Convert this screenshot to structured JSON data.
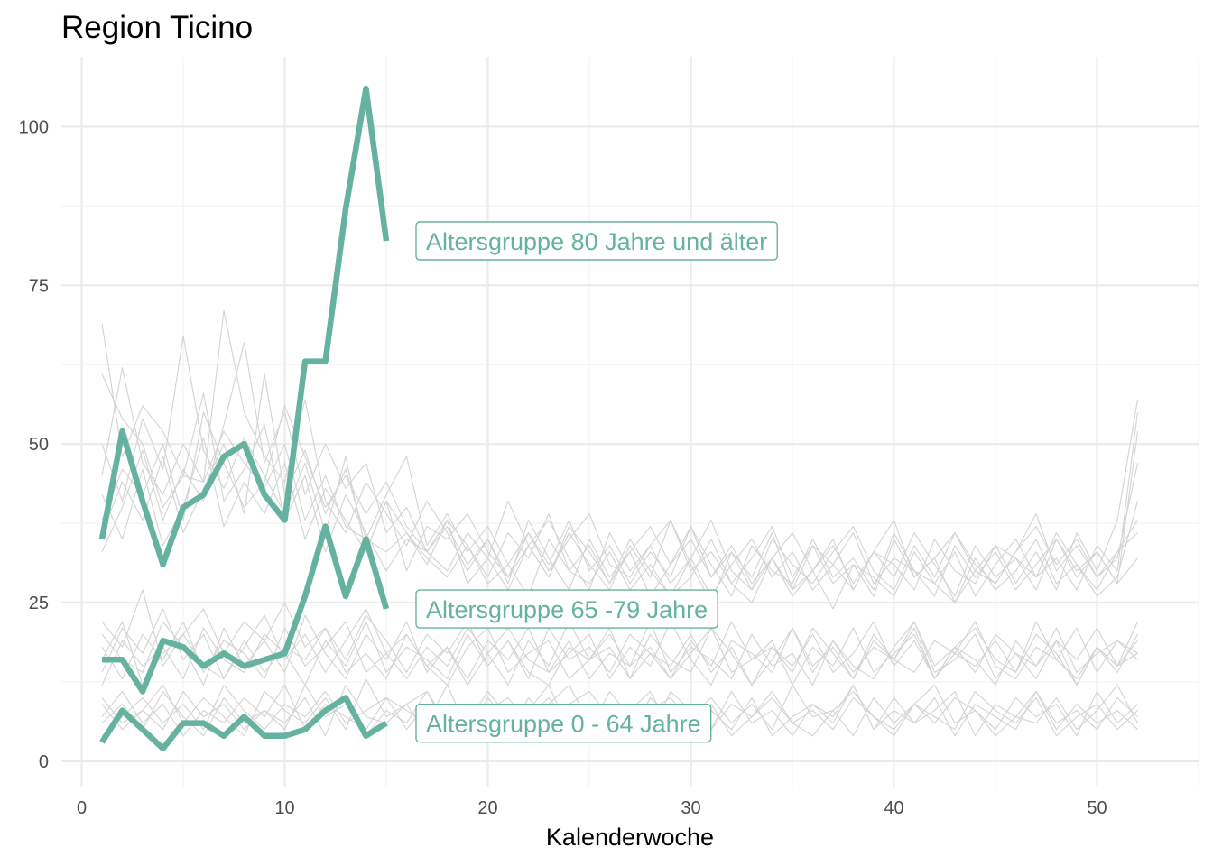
{
  "chart_data": {
    "type": "line",
    "title": "Region Ticino",
    "xlabel": "Kalenderwoche",
    "ylabel": "",
    "xlim": [
      -1,
      55
    ],
    "ylim": [
      -4,
      111
    ],
    "x_ticks": [
      0,
      10,
      20,
      30,
      40,
      50
    ],
    "y_ticks": [
      0,
      25,
      50,
      75,
      100
    ],
    "grid": true,
    "legend": "none",
    "highlight_color": "#66b2a1",
    "background_line_color": "#d3d3d3",
    "series": [
      {
        "name": "Altersgruppe 80 Jahre und älter",
        "label": "Altersgruppe 80 Jahre und älter",
        "x": [
          1,
          2,
          3,
          4,
          5,
          6,
          7,
          8,
          9,
          10,
          11,
          12,
          13,
          14,
          15
        ],
        "values": [
          35,
          52,
          41,
          31,
          40,
          42,
          48,
          50,
          42,
          38,
          63,
          63,
          87,
          106,
          82
        ]
      },
      {
        "name": "Altersgruppe 65 -79 Jahre",
        "label": "Altersgruppe 65 -79 Jahre",
        "x": [
          1,
          2,
          3,
          4,
          5,
          6,
          7,
          8,
          9,
          10,
          11,
          12,
          13,
          14,
          15
        ],
        "values": [
          16,
          16,
          11,
          19,
          18,
          15,
          17,
          15,
          16,
          17,
          26,
          37,
          26,
          35,
          24
        ]
      },
      {
        "name": "Altersgruppe 0 - 64 Jahre",
        "label": "Altersgruppe 0 - 64 Jahre",
        "x": [
          1,
          2,
          3,
          4,
          5,
          6,
          7,
          8,
          9,
          10,
          11,
          12,
          13,
          14,
          15
        ],
        "values": [
          3,
          8,
          5,
          2,
          6,
          6,
          4,
          7,
          4,
          4,
          5,
          8,
          10,
          4,
          6
        ]
      }
    ],
    "background_series": [
      {
        "band": "80+",
        "weeks": [
          1,
          52
        ],
        "values": [
          61,
          54,
          50,
          40,
          45,
          44,
          52,
          47,
          43,
          50,
          38,
          45,
          37,
          35,
          33,
          36,
          32,
          29,
          34,
          28,
          31,
          26,
          35,
          30,
          28,
          33,
          27,
          31,
          26,
          29,
          35,
          28,
          25,
          32,
          27,
          30,
          24,
          31,
          29,
          26,
          33,
          28,
          25,
          32,
          27,
          30,
          35,
          28,
          31,
          26,
          29,
          41
        ]
      },
      {
        "band": "80+",
        "weeks": [
          1,
          52
        ],
        "values": [
          69,
          48,
          56,
          52,
          45,
          58,
          41,
          46,
          53,
          38,
          45,
          33,
          42,
          36,
          30,
          35,
          33,
          38,
          28,
          32,
          41,
          34,
          29,
          36,
          31,
          27,
          34,
          29,
          38,
          31,
          25,
          33,
          29,
          36,
          27,
          34,
          28,
          31,
          26,
          35,
          29,
          32,
          25,
          30,
          34,
          28,
          33,
          27,
          36,
          30,
          38,
          57
        ]
      },
      {
        "band": "80+",
        "weeks": [
          1,
          52
        ],
        "values": [
          45,
          62,
          47,
          42,
          50,
          44,
          71,
          55,
          48,
          44,
          57,
          41,
          36,
          44,
          39,
          34,
          41,
          36,
          30,
          35,
          28,
          38,
          32,
          27,
          35,
          29,
          33,
          26,
          31,
          37,
          29,
          34,
          28,
          32,
          26,
          30,
          35,
          27,
          33,
          29,
          36,
          31,
          26,
          34,
          29,
          32,
          27,
          35,
          30,
          33,
          28,
          32
        ]
      },
      {
        "band": "80+",
        "weeks": [
          1,
          52
        ],
        "values": [
          50,
          41,
          54,
          46,
          67,
          49,
          43,
          51,
          45,
          39,
          47,
          36,
          48,
          33,
          41,
          30,
          37,
          35,
          39,
          33,
          29,
          36,
          31,
          38,
          30,
          34,
          28,
          33,
          29,
          37,
          31,
          26,
          34,
          30,
          28,
          35,
          29,
          32,
          27,
          36,
          30,
          28,
          33,
          26,
          31,
          35,
          29,
          32,
          27,
          34,
          30,
          55
        ]
      },
      {
        "band": "80+",
        "weeks": [
          1,
          52
        ],
        "values": [
          38,
          46,
          42,
          50,
          38,
          55,
          47,
          40,
          44,
          56,
          48,
          40,
          45,
          39,
          44,
          37,
          33,
          30,
          36,
          32,
          27,
          34,
          29,
          37,
          33,
          28,
          35,
          30,
          26,
          32,
          38,
          30,
          27,
          35,
          31,
          28,
          33,
          37,
          30,
          27,
          34,
          29,
          36,
          31,
          28,
          33,
          39,
          30,
          34,
          29,
          32,
          47
        ]
      },
      {
        "band": "80+",
        "weeks": [
          1,
          52
        ],
        "values": [
          33,
          40,
          49,
          38,
          46,
          41,
          53,
          66,
          47,
          55,
          42,
          50,
          43,
          47,
          36,
          40,
          33,
          37,
          31,
          35,
          29,
          34,
          38,
          32,
          27,
          36,
          30,
          34,
          28,
          32,
          26,
          31,
          35,
          29,
          33,
          27,
          31,
          36,
          28,
          32,
          30,
          26,
          34,
          29,
          33,
          27,
          31,
          35,
          29,
          33,
          28,
          52
        ]
      },
      {
        "band": "80+",
        "weeks": [
          1,
          52
        ],
        "values": [
          42,
          35,
          46,
          34,
          40,
          51,
          37,
          44,
          39,
          47,
          35,
          43,
          38,
          33,
          41,
          36,
          31,
          38,
          34,
          29,
          36,
          32,
          39,
          30,
          34,
          28,
          33,
          37,
          31,
          35,
          29,
          33,
          27,
          32,
          36,
          30,
          34,
          28,
          33,
          31,
          27,
          35,
          30,
          28,
          34,
          32,
          29,
          36,
          31,
          27,
          33,
          38
        ]
      },
      {
        "band": "80+",
        "weeks": [
          1,
          52
        ],
        "values": [
          36,
          44,
          38,
          48,
          36,
          43,
          50,
          39,
          61,
          42,
          49,
          39,
          46,
          35,
          42,
          48,
          34,
          39,
          33,
          37,
          31,
          36,
          30,
          35,
          39,
          31,
          29,
          34,
          38,
          30,
          33,
          28,
          32,
          37,
          29,
          34,
          31,
          27,
          33,
          38,
          29,
          32,
          36,
          30,
          28,
          33,
          37,
          31,
          35,
          29,
          33,
          36
        ]
      },
      {
        "band": "65-79",
        "weeks": [
          1,
          52
        ],
        "values": [
          22,
          18,
          27,
          15,
          20,
          24,
          17,
          22,
          19,
          25,
          18,
          21,
          16,
          23,
          19,
          14,
          20,
          17,
          22,
          15,
          19,
          13,
          21,
          16,
          18,
          14,
          20,
          17,
          13,
          19,
          15,
          22,
          16,
          18,
          14,
          21,
          17,
          13,
          19,
          16,
          22,
          15,
          18,
          14,
          20,
          17,
          13,
          19,
          16,
          21,
          15,
          19
        ]
      },
      {
        "band": "65-79",
        "weeks": [
          1,
          52
        ],
        "values": [
          14,
          21,
          17,
          24,
          16,
          20,
          13,
          18,
          23,
          16,
          20,
          14,
          19,
          24,
          17,
          13,
          18,
          15,
          21,
          17,
          12,
          19,
          15,
          22,
          16,
          18,
          13,
          20,
          16,
          14,
          21,
          17,
          12,
          18,
          15,
          20,
          14,
          17,
          22,
          15,
          19,
          13,
          18,
          21,
          16,
          14,
          20,
          17,
          12,
          18,
          15,
          22
        ]
      },
      {
        "band": "65-79",
        "weeks": [
          1,
          52
        ],
        "values": [
          18,
          13,
          20,
          16,
          22,
          14,
          19,
          17,
          13,
          21,
          15,
          18,
          22,
          14,
          17,
          20,
          15,
          12,
          18,
          21,
          14,
          17,
          19,
          13,
          16,
          20,
          15,
          18,
          13,
          17,
          21,
          14,
          16,
          19,
          12,
          18,
          15,
          21,
          14,
          17,
          20,
          13,
          18,
          16,
          12,
          19,
          15,
          21,
          14,
          17,
          19,
          16
        ]
      },
      {
        "band": "65-79",
        "weeks": [
          1,
          52
        ],
        "values": [
          20,
          16,
          14,
          22,
          18,
          12,
          21,
          15,
          19,
          14,
          23,
          17,
          13,
          20,
          16,
          22,
          14,
          18,
          13,
          19,
          16,
          21,
          14,
          17,
          20,
          13,
          18,
          15,
          22,
          16,
          12,
          19,
          17,
          14,
          21,
          15,
          18,
          13,
          20,
          16,
          14,
          19,
          17,
          22,
          15,
          13,
          18,
          16,
          21,
          14,
          19,
          17
        ]
      },
      {
        "band": "65-79",
        "weeks": [
          1,
          52
        ],
        "values": [
          12,
          19,
          15,
          18,
          13,
          21,
          16,
          14,
          20,
          17,
          12,
          19,
          15,
          22,
          14,
          18,
          16,
          13,
          20,
          15,
          19,
          14,
          12,
          18,
          16,
          21,
          13,
          17,
          15,
          20,
          14,
          18,
          12,
          16,
          21,
          14,
          19,
          15,
          13,
          18,
          22,
          14,
          16,
          20,
          13,
          17,
          15,
          19,
          12,
          18,
          14,
          20
        ]
      },
      {
        "band": "65-79",
        "weeks": [
          1,
          52
        ],
        "values": [
          16,
          22,
          12,
          17,
          20,
          15,
          13,
          19,
          14,
          18,
          16,
          21,
          14,
          17,
          13,
          20,
          15,
          18,
          12,
          17,
          21,
          16,
          14,
          19,
          13,
          17,
          15,
          22,
          14,
          18,
          16,
          13,
          20,
          15,
          17,
          12,
          19,
          14,
          18,
          16,
          21,
          13,
          17,
          15,
          19,
          14,
          22,
          16,
          13,
          18,
          15,
          17
        ]
      },
      {
        "band": "0-64",
        "weeks": [
          1,
          52
        ],
        "values": [
          6,
          9,
          5,
          11,
          7,
          4,
          10,
          6,
          8,
          5,
          12,
          7,
          9,
          4,
          8,
          6,
          11,
          5,
          9,
          7,
          4,
          10,
          6,
          8,
          5,
          11,
          7,
          3,
          9,
          6,
          8,
          5,
          10,
          4,
          7,
          9,
          6,
          12,
          5,
          8,
          6,
          10,
          4,
          9,
          7,
          5,
          11,
          6,
          8,
          5,
          10,
          7
        ]
      },
      {
        "band": "0-64",
        "weeks": [
          1,
          52
        ],
        "values": [
          9,
          5,
          8,
          12,
          6,
          10,
          7,
          4,
          11,
          8,
          6,
          10,
          5,
          13,
          7,
          9,
          4,
          8,
          6,
          11,
          7,
          5,
          9,
          12,
          6,
          8,
          4,
          10,
          7,
          9,
          5,
          11,
          6,
          8,
          4,
          9,
          7,
          12,
          5,
          10,
          6,
          8,
          11,
          4,
          9,
          7,
          6,
          10,
          5,
          8,
          12,
          6
        ]
      },
      {
        "band": "0-64",
        "weeks": [
          1,
          52
        ],
        "values": [
          4,
          7,
          10,
          6,
          9,
          5,
          12,
          8,
          5,
          9,
          7,
          11,
          6,
          8,
          10,
          5,
          9,
          7,
          4,
          10,
          6,
          8,
          12,
          5,
          7,
          9,
          6,
          4,
          11,
          8,
          5,
          9,
          7,
          10,
          6,
          4,
          8,
          11,
          7,
          5,
          9,
          6,
          10,
          8,
          4,
          7,
          11,
          5,
          9,
          6,
          8,
          5
        ]
      },
      {
        "band": "0-64",
        "weeks": [
          1,
          52
        ],
        "values": [
          7,
          11,
          6,
          9,
          4,
          8,
          6,
          10,
          7,
          12,
          5,
          9,
          7,
          5,
          10,
          8,
          6,
          12,
          5,
          8,
          10,
          6,
          4,
          9,
          11,
          7,
          5,
          8,
          10,
          6,
          9,
          4,
          7,
          11,
          6,
          8,
          5,
          10,
          7,
          4,
          9,
          12,
          6,
          8,
          5,
          10,
          7,
          9,
          4,
          11,
          6,
          9
        ]
      },
      {
        "band": "0-64",
        "weeks": [
          1,
          52
        ],
        "values": [
          10,
          6,
          8,
          5,
          11,
          7,
          9,
          5,
          8,
          6,
          10,
          4,
          12,
          7,
          6,
          9,
          11,
          6,
          8,
          4,
          9,
          7,
          10,
          6,
          5,
          9,
          8,
          11,
          5,
          7,
          10,
          6,
          9,
          5,
          12,
          7,
          8,
          4,
          10,
          6,
          9,
          7,
          5,
          11,
          8,
          6,
          10,
          4,
          7,
          9,
          5,
          8
        ]
      }
    ]
  }
}
